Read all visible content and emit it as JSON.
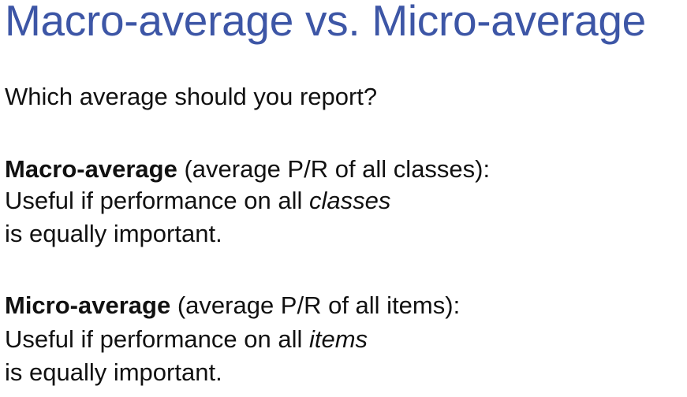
{
  "title": "Macro-average vs. Micro-average",
  "question": "Which average should you report?",
  "macro": {
    "term": "Macro-average",
    "definition": " (average P/R of all classes):",
    "line2_prefix": "Useful if performance on all ",
    "line2_emphasis": "classes",
    "line3": "is equally important."
  },
  "micro": {
    "term": "Micro-average",
    "definition": " (average P/R of all items):",
    "line2_prefix": "Useful if performance on all ",
    "line2_emphasis": "items",
    "line3": "is equally important."
  },
  "colors": {
    "title": "#3d56a6",
    "body_text": "#111111",
    "background": "#ffffff"
  }
}
